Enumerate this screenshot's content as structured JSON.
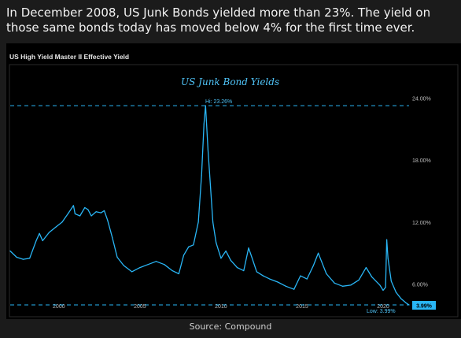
{
  "headline": "In December 2008, US Junk Bonds yielded more than 23%. The yield on those same bonds today has moved below 4% for the first time ever.",
  "source": "Source: Compound",
  "colors": {
    "line": "#29b6f6",
    "background": "#000000",
    "page": "#1b1b1b",
    "label_box": "#29b6f6"
  },
  "chart_data": {
    "type": "line",
    "panel_title": "US High Yield Master II Effective Yield",
    "title": "US Junk Bond Yields",
    "xlabel": "",
    "ylabel": "",
    "xlim": [
      1997.0,
      2021.6
    ],
    "ylim": [
      3.0,
      27.0
    ],
    "xticks": [
      2000,
      2005,
      2010,
      2015,
      2020
    ],
    "xtick_labels": [
      "2000",
      "2005",
      "2010",
      "2015",
      "2020"
    ],
    "yticks": [
      6,
      12,
      18,
      24
    ],
    "ytick_labels": [
      "6.00%",
      "12.00%",
      "18.00%",
      "24.00%"
    ],
    "grid": false,
    "series": [
      {
        "values_x": [
          1997.0,
          1997.4,
          1997.8,
          1998.2,
          1998.6,
          1998.8,
          1999.0,
          1999.4,
          1999.8,
          2000.2,
          2000.6,
          2000.9,
          2001.0,
          2001.3,
          2001.6,
          2001.8,
          2002.0,
          2002.3,
          2002.6,
          2002.8,
          2003.0,
          2003.3,
          2003.6,
          2004.0,
          2004.5,
          2005.0,
          2005.5,
          2006.0,
          2006.5,
          2007.0,
          2007.4,
          2007.7,
          2008.0,
          2008.3,
          2008.6,
          2008.8,
          2008.95,
          2009.05,
          2009.2,
          2009.35,
          2009.5,
          2009.7,
          2010.0,
          2010.3,
          2010.6,
          2011.0,
          2011.4,
          2011.7,
          2011.9,
          2012.2,
          2012.6,
          2013.0,
          2013.5,
          2014.0,
          2014.5,
          2014.9,
          2015.3,
          2015.7,
          2016.0,
          2016.2,
          2016.5,
          2017.0,
          2017.5,
          2018.0,
          2018.5,
          2018.95,
          2019.3,
          2019.8,
          2020.0,
          2020.15,
          2020.22,
          2020.3,
          2020.5,
          2020.8,
          2021.1,
          2021.4,
          2021.6
        ],
        "values_y": [
          9.2,
          8.6,
          8.4,
          8.5,
          10.2,
          10.9,
          10.2,
          11.0,
          11.5,
          12.0,
          12.9,
          13.6,
          12.8,
          12.6,
          13.4,
          13.2,
          12.6,
          13.0,
          12.9,
          13.1,
          12.2,
          10.5,
          8.6,
          7.8,
          7.2,
          7.6,
          7.9,
          8.2,
          7.9,
          7.3,
          7.0,
          8.8,
          9.6,
          9.8,
          12.0,
          16.5,
          21.5,
          23.26,
          19.0,
          15.5,
          12.0,
          10.0,
          8.5,
          9.2,
          8.3,
          7.6,
          7.3,
          9.5,
          8.6,
          7.2,
          6.8,
          6.5,
          6.2,
          5.8,
          5.5,
          6.8,
          6.5,
          7.8,
          9.0,
          8.2,
          7.0,
          6.1,
          5.8,
          5.9,
          6.4,
          7.6,
          6.7,
          5.9,
          5.4,
          5.7,
          10.3,
          8.5,
          6.3,
          5.2,
          4.6,
          4.2,
          3.99
        ]
      }
    ],
    "annotations": {
      "high_label": "Hi: 23.26%",
      "high_value": 23.26,
      "low_label": "Low: 3.99%",
      "low_value": 3.99,
      "last_value_label": "3.99%"
    }
  }
}
